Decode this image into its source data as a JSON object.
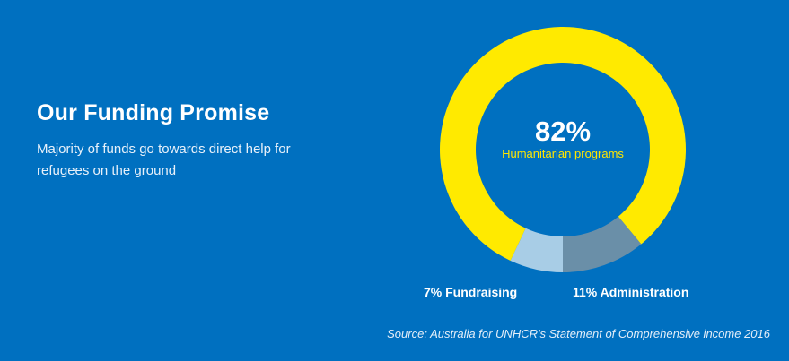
{
  "heading": {
    "title": "Our Funding Promise",
    "subtitle": "Majority of funds go towards direct help for refugees on the ground"
  },
  "chart_data": {
    "type": "pie",
    "style": "donut",
    "slices": [
      {
        "value": 82,
        "label_value": "82%",
        "label": "Humanitarian programs",
        "color": "#ffea00"
      },
      {
        "value": 11,
        "label_value": "11%",
        "label": "Administration",
        "color": "#6a8fa8"
      },
      {
        "value": 7,
        "label_value": "7%",
        "label": "Fundraising",
        "color": "#a8cde6"
      }
    ],
    "source": "Source: Australia for UNHCR's Statement of Comprehensive income 2016"
  }
}
